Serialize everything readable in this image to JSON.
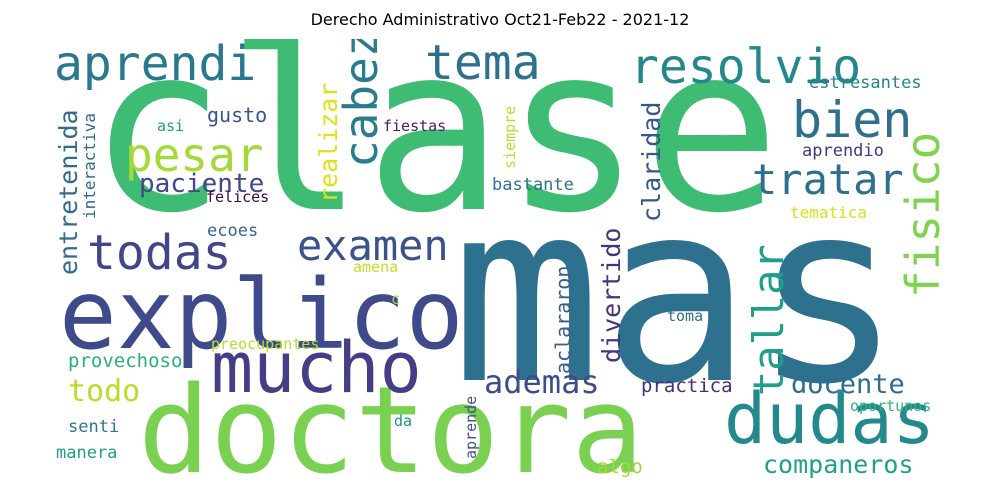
{
  "title": "Derecho Administrativo Oct21-Feb22 - 2021-12",
  "words": [
    {
      "text": "clase",
      "color": "#3fbc73"
    },
    {
      "text": "mas",
      "color": "#2d718e"
    },
    {
      "text": "doctora",
      "color": "#7ad151"
    },
    {
      "text": "explico",
      "color": "#3e4a89"
    },
    {
      "text": "mucho",
      "color": "#433e85"
    },
    {
      "text": "dudas",
      "color": "#23898e"
    },
    {
      "text": "aprendi",
      "color": "#2a788e"
    },
    {
      "text": "tema",
      "color": "#2d708e"
    },
    {
      "text": "resolvio",
      "color": "#24878e"
    },
    {
      "text": "pesar",
      "color": "#a2da37"
    },
    {
      "text": "bien",
      "color": "#2e6f8e"
    },
    {
      "text": "cabeza",
      "color": "#297b8e"
    },
    {
      "text": "todas",
      "color": "#404688"
    },
    {
      "text": "examen",
      "color": "#3b528b"
    },
    {
      "text": "tratar",
      "color": "#2e6e8e"
    },
    {
      "text": "fisico",
      "color": "#7fd34e"
    },
    {
      "text": "tallar",
      "color": "#1f9e89"
    },
    {
      "text": "ademas",
      "color": "#3e4c8a"
    },
    {
      "text": "docente",
      "color": "#2f6c8e"
    },
    {
      "text": "companeros",
      "color": "#1fa088"
    },
    {
      "text": "paciente",
      "color": "#3f4889"
    },
    {
      "text": "realizar",
      "color": "#dde318"
    },
    {
      "text": "claridad",
      "color": "#38588c"
    },
    {
      "text": "entretenida",
      "color": "#2f6c8e"
    },
    {
      "text": "interactiva",
      "color": "#31688e"
    },
    {
      "text": "gusto",
      "color": "#39568c"
    },
    {
      "text": "asi",
      "color": "#1f9a8a"
    },
    {
      "text": "felices",
      "color": "#440154"
    },
    {
      "text": "fiestas",
      "color": "#481a6c"
    },
    {
      "text": "siempre",
      "color": "#b8de29"
    },
    {
      "text": "bastante",
      "color": "#2c728e"
    },
    {
      "text": "estresantes",
      "color": "#25838e"
    },
    {
      "text": "aprendio",
      "color": "#453581"
    },
    {
      "text": "tematica",
      "color": "#d8e219"
    },
    {
      "text": "ecoes",
      "color": "#31678e"
    },
    {
      "text": "amena",
      "color": "#c2df23"
    },
    {
      "text": "divertido",
      "color": "#46337f"
    },
    {
      "text": "aclararon",
      "color": "#355f8d"
    },
    {
      "text": "c",
      "color": "#9fda3a"
    },
    {
      "text": "toma",
      "color": "#2c718e"
    },
    {
      "text": "preocupantes",
      "color": "#b5de2b"
    },
    {
      "text": "provechoso",
      "color": "#2ab07f"
    },
    {
      "text": "todo",
      "color": "#b8de29"
    },
    {
      "text": "practica",
      "color": "#472d7b"
    },
    {
      "text": "senti",
      "color": "#2a778e"
    },
    {
      "text": "manera",
      "color": "#1f9e89"
    },
    {
      "text": "aprende",
      "color": "#3b528b"
    },
    {
      "text": "da",
      "color": "#21918c"
    },
    {
      "text": "oportunos",
      "color": "#2db27d"
    },
    {
      "text": "algo",
      "color": "#a0da39"
    }
  ]
}
